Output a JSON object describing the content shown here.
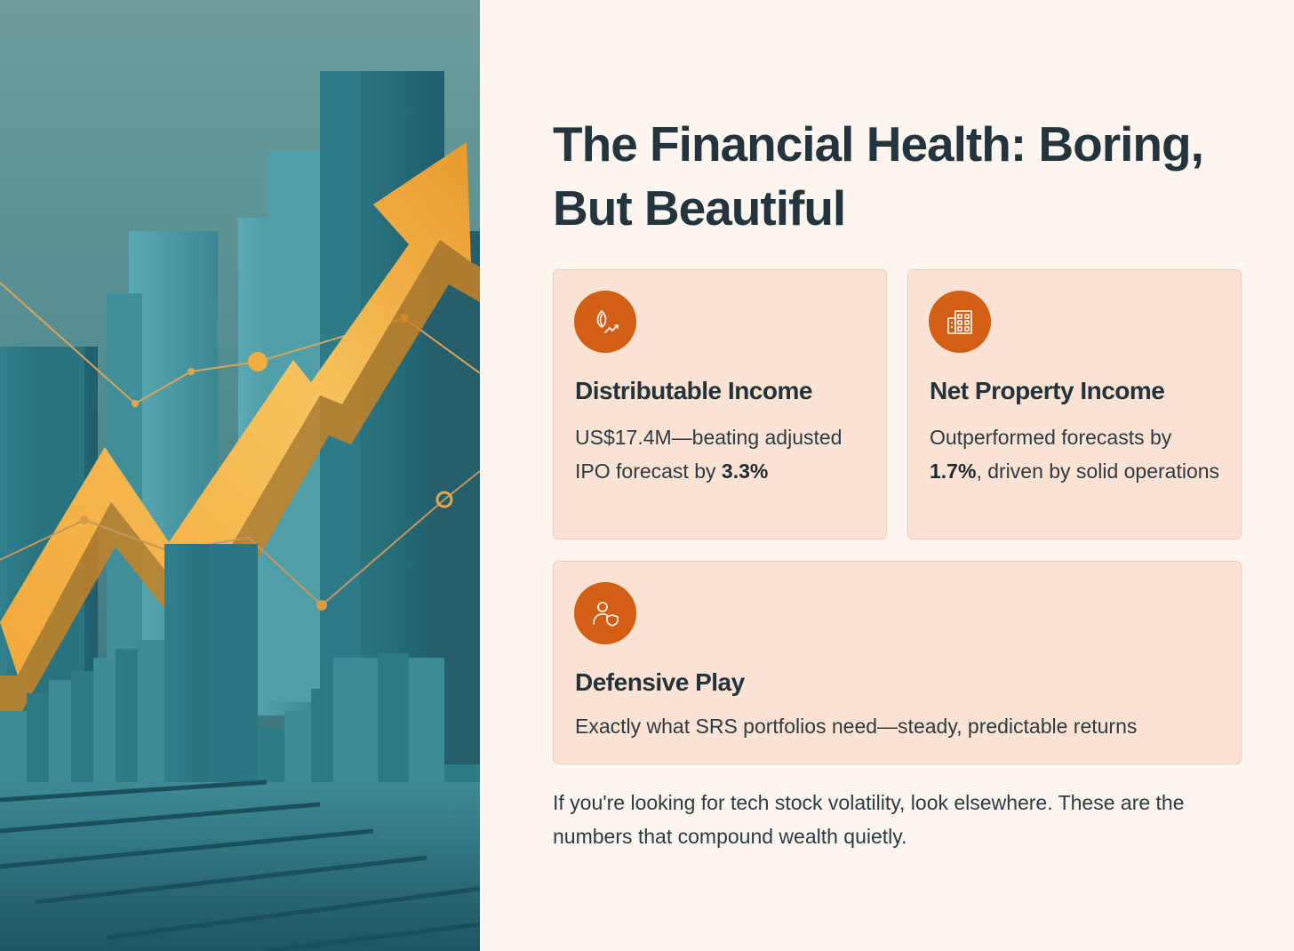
{
  "title": "The Financial Health: Boring, But Beautiful",
  "cards": [
    {
      "icon": "seed-growth-icon",
      "heading": "Distributable Income",
      "text_before": "US$17.4M—beating adjusted IPO forecast by ",
      "highlight": "3.3%",
      "text_after": ""
    },
    {
      "icon": "building-icon",
      "heading": "Net Property Income",
      "text_before": "Outperformed forecasts by ",
      "highlight": "1.7%",
      "text_after": ", driven by solid operations"
    },
    {
      "icon": "user-shield-icon",
      "heading": "Defensive Play",
      "text": "Exactly what SRS portfolios need—steady, predictable returns"
    }
  ],
  "closing": "If you're looking for tech stock volatility, look elsewhere. These are the numbers that compound wealth quietly.",
  "colors": {
    "background": "#fdf6f0",
    "card": "#fde3d3",
    "accent": "#d35f14",
    "text": "#22333b"
  }
}
